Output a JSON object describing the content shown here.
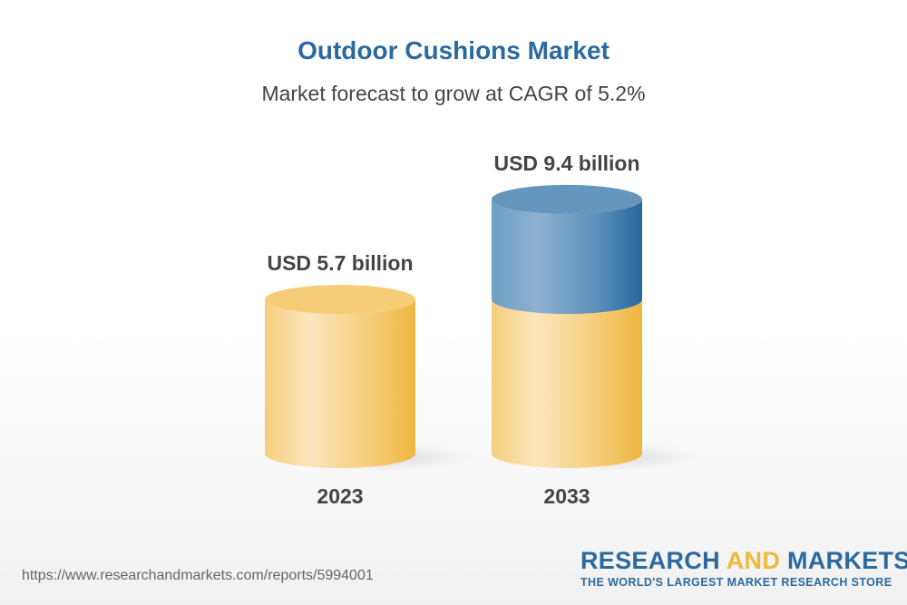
{
  "chart_data": {
    "type": "bar",
    "title": "Outdoor Cushions Market",
    "subtitle": "Market forecast to grow at CAGR of 5.2%",
    "categories": [
      "2023",
      "2033"
    ],
    "values": [
      5.7,
      9.4
    ],
    "data_labels": [
      "USD 5.7 billion",
      "USD 9.4 billion"
    ],
    "unit": "USD billion",
    "style": "3d-cylinder",
    "colors": {
      "base": "#f2c25a",
      "growth": "#2b6aa0"
    }
  },
  "footer": {
    "url": "https://www.researchandmarkets.com/reports/5994001",
    "logo_word1": "RESEARCH",
    "logo_word2": "AND",
    "logo_word3": "MARKETS",
    "logo_tagline": "THE WORLD'S LARGEST MARKET RESEARCH STORE"
  }
}
